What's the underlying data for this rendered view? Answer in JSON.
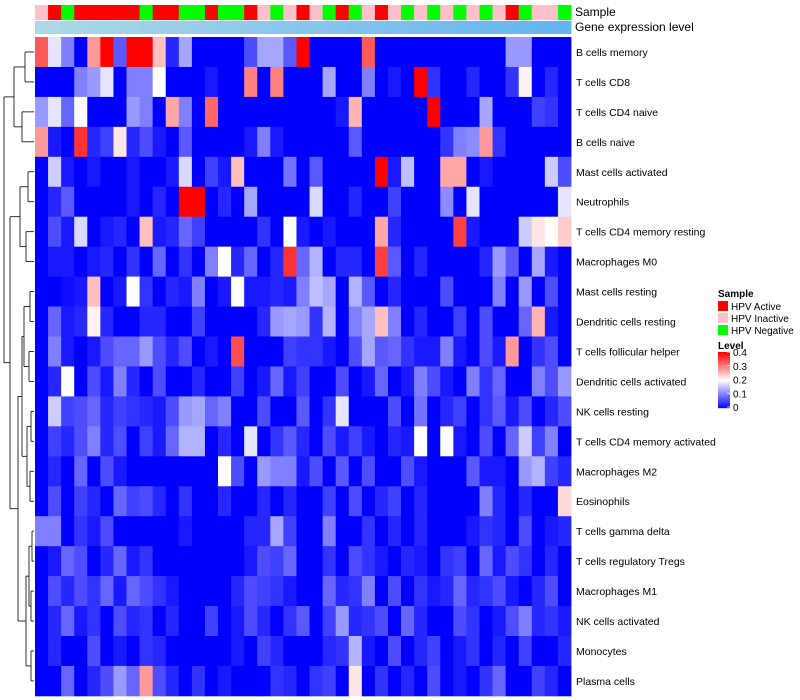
{
  "chart_data": {
    "type": "heatmap",
    "title": "",
    "colorscale": {
      "low": "#0000ff",
      "mid": "#ffffff",
      "high": "#ff0000"
    },
    "annotation_labels": [
      "Sample",
      "Gene expression level"
    ],
    "sample_legend": {
      "title": "Sample",
      "items": [
        {
          "label": "HPV Active",
          "color": "#ff0000"
        },
        {
          "label": "HPV Inactive",
          "color": "#ffc0cb"
        },
        {
          "label": "HPV Negative",
          "color": "#00ff00"
        }
      ]
    },
    "level_legend": {
      "title": "Level",
      "ticks": [
        "0.4",
        "0.3",
        "0.2",
        "0.1",
        "0"
      ],
      "range": [
        0,
        0.4
      ]
    },
    "samples": [
      "I",
      "A",
      "N",
      "A",
      "A",
      "A",
      "A",
      "A",
      "N",
      "A",
      "A",
      "N",
      "N",
      "A",
      "N",
      "N",
      "A",
      "I",
      "N",
      "I",
      "A",
      "I",
      "N",
      "A",
      "N",
      "I",
      "A",
      "I",
      "N",
      "I",
      "N",
      "I",
      "N",
      "I",
      "N",
      "I",
      "A",
      "N",
      "I",
      "I",
      "N"
    ],
    "rows": [
      {
        "name": "B cells memory",
        "values": [
          0.33,
          0.18,
          0.1,
          0,
          0.28,
          0.4,
          0.07,
          0.4,
          0.4,
          0.25,
          0.03,
          0.13,
          0,
          0,
          0,
          0,
          0.06,
          0.13,
          0.13,
          0.07,
          0.4,
          0,
          0,
          0,
          0,
          0.33,
          0,
          0,
          0,
          0,
          0,
          0,
          0,
          0,
          0,
          0,
          0.12,
          0.12,
          0,
          0,
          0
        ]
      },
      {
        "name": "T cells CD8",
        "values": [
          0,
          0,
          0,
          0.1,
          0.12,
          0.18,
          0,
          0.1,
          0.1,
          0.2,
          0,
          0,
          0,
          0.02,
          0,
          0,
          0.3,
          0,
          0.3,
          0,
          0,
          0,
          0.13,
          0,
          0,
          0.1,
          0,
          0.02,
          0,
          0.4,
          0.04,
          0,
          0,
          0.03,
          0,
          0,
          0.04,
          0.21,
          0,
          0.03,
          0
        ]
      },
      {
        "name": "T cells CD4 naive",
        "values": [
          0.12,
          0.18,
          0.08,
          0.2,
          0,
          0,
          0,
          0.12,
          0.1,
          0,
          0.27,
          0.1,
          0,
          0.32,
          0,
          0,
          0,
          0,
          0,
          0,
          0,
          0,
          0,
          0.02,
          0.26,
          0,
          0,
          0,
          0,
          0,
          0.4,
          0,
          0,
          0,
          0.13,
          0,
          0,
          0,
          0.05,
          0.04,
          0
        ]
      },
      {
        "name": "B cells naive",
        "values": [
          0.28,
          0.02,
          0,
          0.36,
          0.03,
          0.05,
          0.22,
          0.03,
          0.06,
          0.02,
          0,
          0.07,
          0,
          0,
          0,
          0,
          0.02,
          0.1,
          0.02,
          0,
          0,
          0,
          0,
          0,
          0.07,
          0,
          0,
          0,
          0,
          0,
          0,
          0.04,
          0.1,
          0.11,
          0.28,
          0.04,
          0,
          0,
          0,
          0,
          0
        ]
      },
      {
        "name": "Mast cells activated",
        "values": [
          0,
          0.16,
          0.02,
          0,
          0.02,
          0,
          0,
          0.02,
          0,
          0,
          0.02,
          0.17,
          0,
          0.05,
          0.02,
          0.25,
          0,
          0,
          0,
          0.09,
          0,
          0.07,
          0,
          0,
          0,
          0,
          0.4,
          0.02,
          0.15,
          0,
          0,
          0.27,
          0.27,
          0,
          0.02,
          0,
          0,
          0,
          0,
          0.16,
          0.06
        ]
      },
      {
        "name": "Neutrophils",
        "values": [
          0,
          0.03,
          0.07,
          0,
          0,
          0,
          0,
          0.02,
          0,
          0.03,
          0,
          0.4,
          0.4,
          0,
          0.03,
          0,
          0.13,
          0,
          0,
          0,
          0,
          0.17,
          0,
          0,
          0.03,
          0,
          0,
          0.05,
          0,
          0,
          0,
          0.11,
          0,
          0.18,
          0,
          0,
          0,
          0,
          0,
          0,
          0.18
        ]
      },
      {
        "name": "T cells CD4 memory resting",
        "values": [
          0,
          0.06,
          0.02,
          0.17,
          0,
          0.02,
          0.03,
          0,
          0.25,
          0.02,
          0.03,
          0.08,
          0.05,
          0,
          0,
          0,
          0,
          0.04,
          0,
          0.2,
          0.02,
          0,
          0.02,
          0,
          0,
          0,
          0.27,
          0.03,
          0,
          0,
          0,
          0,
          0.35,
          0.02,
          0,
          0,
          0,
          0.16,
          0.22,
          0.2,
          0.24
        ]
      },
      {
        "name": "Macrophages M0",
        "values": [
          0,
          0.02,
          0.02,
          0,
          0.02,
          0.03,
          0,
          0.04,
          0,
          0.08,
          0,
          0.04,
          0,
          0.1,
          0.2,
          0.03,
          0.08,
          0,
          0.03,
          0.36,
          0.08,
          0.14,
          0,
          0.03,
          0.03,
          0,
          0.35,
          0.07,
          0,
          0.03,
          0,
          0,
          0,
          0,
          0.03,
          0.12,
          0.07,
          0,
          0.13,
          0.02,
          0
        ]
      },
      {
        "name": "Mast cells resting",
        "values": [
          0,
          0,
          0.01,
          0.02,
          0.25,
          0,
          0.02,
          0.2,
          0.04,
          0,
          0.03,
          0.02,
          0.1,
          0,
          0.02,
          0.2,
          0.02,
          0.02,
          0.03,
          0.02,
          0.1,
          0.15,
          0.13,
          0,
          0.14,
          0.07,
          0,
          0.03,
          0,
          0,
          0,
          0.06,
          0,
          0,
          0,
          0.1,
          0,
          0.12,
          0,
          0.06,
          0
        ]
      },
      {
        "name": "Dendritic cells resting",
        "values": [
          0,
          0.08,
          0.02,
          0.03,
          0.21,
          0.03,
          0,
          0,
          0.03,
          0.03,
          0,
          0,
          0.05,
          0,
          0,
          0,
          0,
          0.03,
          0.12,
          0.13,
          0.12,
          0.04,
          0.14,
          0,
          0.1,
          0.13,
          0.25,
          0.1,
          0,
          0.03,
          0,
          0,
          0.05,
          0,
          0.06,
          0,
          0,
          0.08,
          0.26,
          0.02,
          0
        ]
      },
      {
        "name": "T cells follicular helper",
        "values": [
          0,
          0.1,
          0.02,
          0,
          0.02,
          0.06,
          0.08,
          0.08,
          0.12,
          0.06,
          0.03,
          0.06,
          0,
          0.02,
          0,
          0.34,
          0,
          0,
          0,
          0.05,
          0.04,
          0.04,
          0.02,
          0,
          0.06,
          0.13,
          0.07,
          0.08,
          0.04,
          0.02,
          0.02,
          0.1,
          0.02,
          0,
          0.06,
          0.02,
          0.28,
          0,
          0.04,
          0.06,
          0
        ]
      },
      {
        "name": "Dendritic cells activated",
        "values": [
          0,
          0.03,
          0.2,
          0,
          0.06,
          0.02,
          0.1,
          0.03,
          0,
          0.06,
          0,
          0,
          0.03,
          0,
          0,
          0.05,
          0,
          0.02,
          0.08,
          0.02,
          0.05,
          0,
          0,
          0.06,
          0,
          0.02,
          0.08,
          0,
          0.02,
          0.1,
          0.06,
          0.02,
          0,
          0.1,
          0.04,
          0.08,
          0,
          0,
          0.1,
          0.06,
          0.12
        ]
      },
      {
        "name": "NK cells resting",
        "values": [
          0,
          0.16,
          0.05,
          0.06,
          0.08,
          0.03,
          0.05,
          0.04,
          0.03,
          0.02,
          0.06,
          0.12,
          0.13,
          0.08,
          0.1,
          0,
          0,
          0.06,
          0,
          0,
          0.07,
          0,
          0.04,
          0.18,
          0,
          0,
          0,
          0.06,
          0,
          0.09,
          0,
          0.03,
          0.05,
          0,
          0.04,
          0.07,
          0.02,
          0.06,
          0,
          0.03,
          0.06
        ]
      },
      {
        "name": "T cells CD4 memory activated",
        "values": [
          0,
          0.05,
          0.03,
          0.06,
          0.1,
          0.03,
          0.06,
          0,
          0.05,
          0.02,
          0.08,
          0.14,
          0.14,
          0,
          0.03,
          0,
          0.18,
          0,
          0.04,
          0.07,
          0.03,
          0,
          0.06,
          0.02,
          0.05,
          0.02,
          0,
          0.03,
          0.02,
          0.2,
          0,
          0.2,
          0.02,
          0,
          0.06,
          0,
          0.08,
          0.16,
          0.05,
          0.1,
          0
        ]
      },
      {
        "name": "Macrophages M2",
        "values": [
          0,
          0.03,
          0,
          0.08,
          0,
          0.06,
          0.02,
          0,
          0,
          0,
          0,
          0,
          0,
          0,
          0.2,
          0.06,
          0,
          0.12,
          0.1,
          0.1,
          0.02,
          0.06,
          0,
          0.07,
          0,
          0.06,
          0,
          0,
          0.06,
          0.02,
          0,
          0,
          0,
          0.07,
          0.02,
          0.02,
          0,
          0.12,
          0.14,
          0.05,
          0.03
        ]
      },
      {
        "name": "Eosinophils",
        "values": [
          0,
          0.06,
          0,
          0.05,
          0.03,
          0,
          0.08,
          0.05,
          0.06,
          0.03,
          0,
          0.04,
          0,
          0,
          0.03,
          0,
          0,
          0.03,
          0,
          0.03,
          0,
          0,
          0.05,
          0,
          0.06,
          0,
          0.03,
          0.05,
          0,
          0.03,
          0,
          0,
          0,
          0,
          0.1,
          0.03,
          0,
          0.03,
          0,
          0,
          0.23
        ]
      },
      {
        "name": "T cells gamma delta",
        "values": [
          0.1,
          0.1,
          0,
          0.04,
          0.02,
          0.06,
          0,
          0,
          0,
          0,
          0,
          0.02,
          0,
          0,
          0,
          0,
          0.03,
          0.03,
          0.13,
          0.05,
          0,
          0,
          0.1,
          0,
          0,
          0.04,
          0,
          0.03,
          0,
          0.03,
          0,
          0,
          0,
          0.02,
          0.04,
          0.03,
          0,
          0.06,
          0,
          0.02,
          0.03
        ]
      },
      {
        "name": "T cells regulatory  Tregs",
        "values": [
          0,
          0.02,
          0.08,
          0.06,
          0,
          0.03,
          0.08,
          0.02,
          0.04,
          0,
          0,
          0,
          0,
          0,
          0,
          0,
          0.02,
          0.06,
          0.05,
          0.08,
          0,
          0,
          0.04,
          0,
          0.06,
          0.04,
          0.02,
          0,
          0.03,
          0.02,
          0,
          0.04,
          0.05,
          0,
          0.08,
          0.02,
          0.06,
          0.04,
          0,
          0.03,
          0
        ]
      },
      {
        "name": "Macrophages M1",
        "values": [
          0,
          0.06,
          0.03,
          0.06,
          0.04,
          0.08,
          0.02,
          0.08,
          0.06,
          0.04,
          0.02,
          0,
          0,
          0,
          0,
          0.03,
          0.06,
          0.05,
          0.04,
          0.02,
          0,
          0,
          0.08,
          0.03,
          0.04,
          0.1,
          0,
          0.06,
          0,
          0.04,
          0.02,
          0.03,
          0.08,
          0.03,
          0.04,
          0.06,
          0.02,
          0,
          0.03,
          0.06,
          0
        ]
      },
      {
        "name": "NK cells activated",
        "values": [
          0,
          0.03,
          0.08,
          0.02,
          0.04,
          0,
          0.06,
          0.03,
          0.04,
          0,
          0.03,
          0,
          0,
          0.05,
          0,
          0.02,
          0.06,
          0.03,
          0,
          0.04,
          0.07,
          0,
          0.05,
          0.12,
          0.03,
          0.04,
          0.06,
          0,
          0.08,
          0.03,
          0,
          0,
          0.06,
          0.04,
          0,
          0.02,
          0.06,
          0.1,
          0.03,
          0.04,
          0.02
        ]
      },
      {
        "name": "Monocytes",
        "values": [
          0,
          0.03,
          0,
          0,
          0.06,
          0,
          0.02,
          0,
          0.04,
          0.03,
          0,
          0,
          0,
          0,
          0,
          0.02,
          0,
          0.05,
          0.03,
          0,
          0,
          0,
          0.03,
          0.04,
          0.14,
          0.02,
          0,
          0.06,
          0,
          0.03,
          0.05,
          0,
          0.02,
          0.04,
          0,
          0.03,
          0,
          0.05,
          0,
          0,
          0.03
        ]
      },
      {
        "name": "Plasma cells",
        "values": [
          0,
          0,
          0.08,
          0,
          0.03,
          0.06,
          0.12,
          0.08,
          0.28,
          0.06,
          0.03,
          0,
          0.04,
          0,
          0.02,
          0,
          0,
          0,
          0.04,
          0.03,
          0,
          0.04,
          0.05,
          0,
          0.22,
          0,
          0.04,
          0,
          0.03,
          0,
          0.06,
          0,
          0.02,
          0,
          0.04,
          0.08,
          0,
          0,
          0.05,
          0.03,
          0
        ]
      }
    ]
  }
}
